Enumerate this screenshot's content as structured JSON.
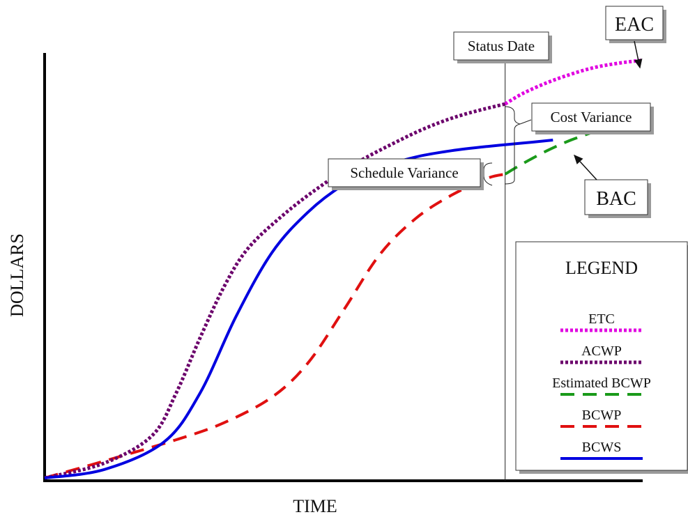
{
  "chart_data": {
    "type": "line",
    "title": "",
    "xlabel": "TIME",
    "ylabel": "DOLLARS",
    "xlim": [
      0,
      100
    ],
    "ylim": [
      0,
      100
    ],
    "grid": false,
    "legend_position": "bottom-right",
    "legend_title": "LEGEND",
    "status_date": 77,
    "status_date_label": "Status Date",
    "annotations": {
      "eac": "EAC",
      "bac": "BAC",
      "cost_variance": "Cost Variance",
      "schedule_variance": "Schedule Variance"
    },
    "series": [
      {
        "name": "ETC",
        "color": "#e000e0",
        "style": "dotted",
        "x": [
          77,
          80,
          84,
          88,
          92,
          96,
          100
        ],
        "y": [
          88,
          90.5,
          93.0,
          95.0,
          96.6,
          97.6,
          98.3
        ]
      },
      {
        "name": "ACWP",
        "color": "#6b006b",
        "style": "dotted",
        "x": [
          0,
          10,
          18,
          22,
          26,
          30,
          34,
          40,
          46,
          52,
          58,
          64,
          70,
          77
        ],
        "y": [
          0,
          3.5,
          10.0,
          20.0,
          33.0,
          45.0,
          54.0,
          62.0,
          68.5,
          74.0,
          78.5,
          82.5,
          85.5,
          88
        ]
      },
      {
        "name": "Estimated BCWP",
        "color": "#1a9a1a",
        "style": "dashed",
        "x": [
          77,
          80,
          84,
          88,
          92,
          96,
          100
        ],
        "y": [
          71.5,
          74.0,
          77.0,
          79.5,
          81.5,
          83.3,
          85.0
        ]
      },
      {
        "name": "BCWP",
        "color": "#e01010",
        "style": "dashed",
        "x": [
          0,
          10,
          22,
          30,
          38,
          44,
          50,
          56,
          62,
          68,
          74,
          77
        ],
        "y": [
          0,
          4.0,
          9.0,
          13.0,
          19.0,
          27.0,
          39.5,
          52.5,
          61.0,
          66.5,
          70.5,
          71.5
        ]
      },
      {
        "name": "BCWS",
        "color": "#0000e0",
        "style": "solid",
        "x": [
          0,
          10,
          20,
          26,
          32,
          38,
          44,
          50,
          56,
          62,
          68,
          74,
          80,
          85
        ],
        "y": [
          0,
          2.0,
          8.5,
          20.0,
          38.0,
          53.0,
          62.5,
          69.0,
          73.0,
          75.5,
          77.0,
          78.0,
          78.8,
          79.5
        ]
      }
    ]
  }
}
